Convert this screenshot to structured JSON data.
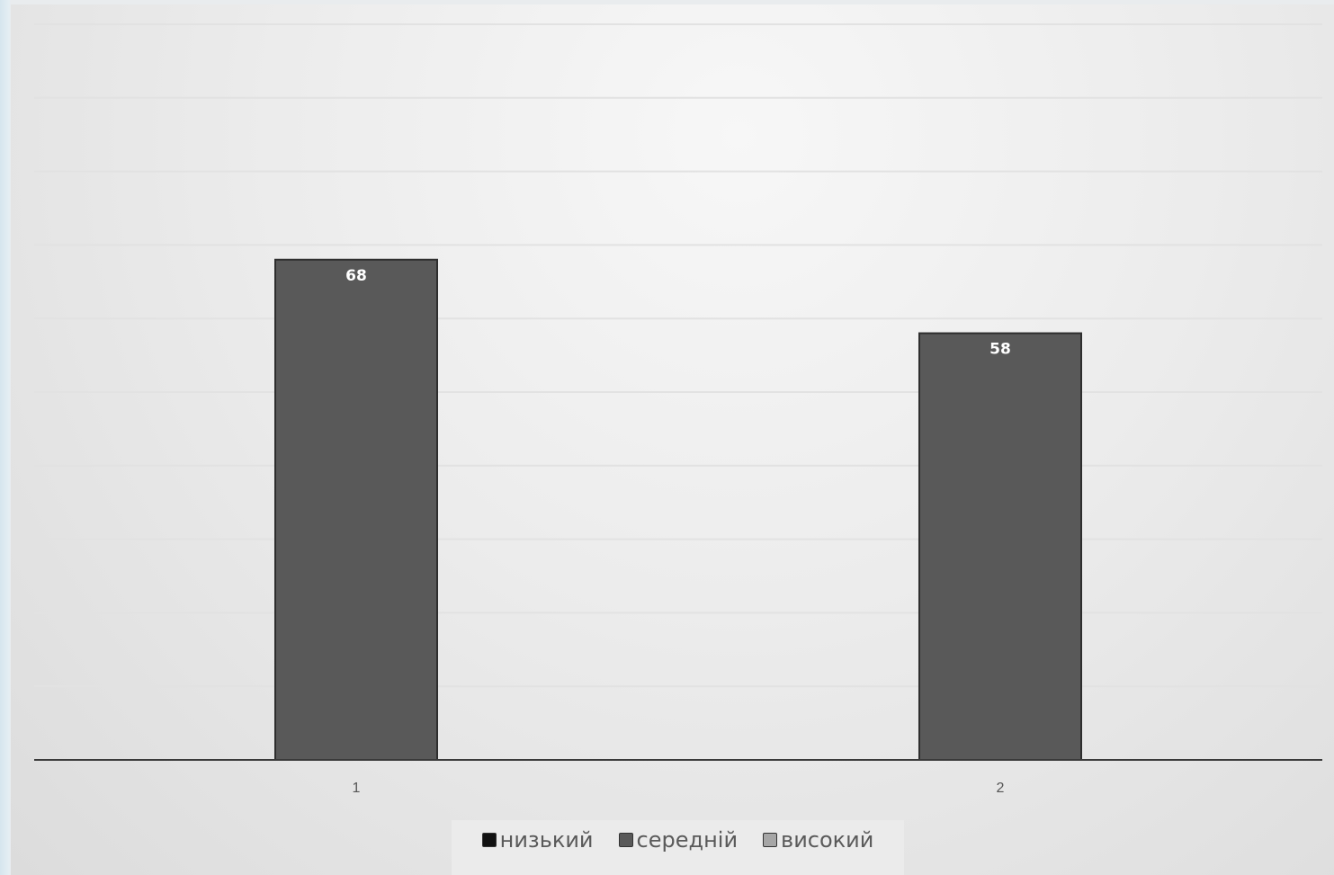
{
  "chart_data": {
    "type": "bar",
    "categories": [
      "1",
      "2"
    ],
    "series": [
      {
        "name": "низький",
        "values": [
          null,
          null
        ],
        "color": "#111111"
      },
      {
        "name": "середній",
        "values": [
          68,
          58
        ],
        "color": "#595959"
      },
      {
        "name": "високий",
        "values": [
          null,
          null
        ],
        "color": "#a6a6a6"
      }
    ],
    "data_labels": [
      "68",
      "58"
    ],
    "ylim": [
      0,
      100
    ],
    "gridlines": true,
    "legend_position": "bottom",
    "title": "",
    "xlabel": "",
    "ylabel": ""
  }
}
